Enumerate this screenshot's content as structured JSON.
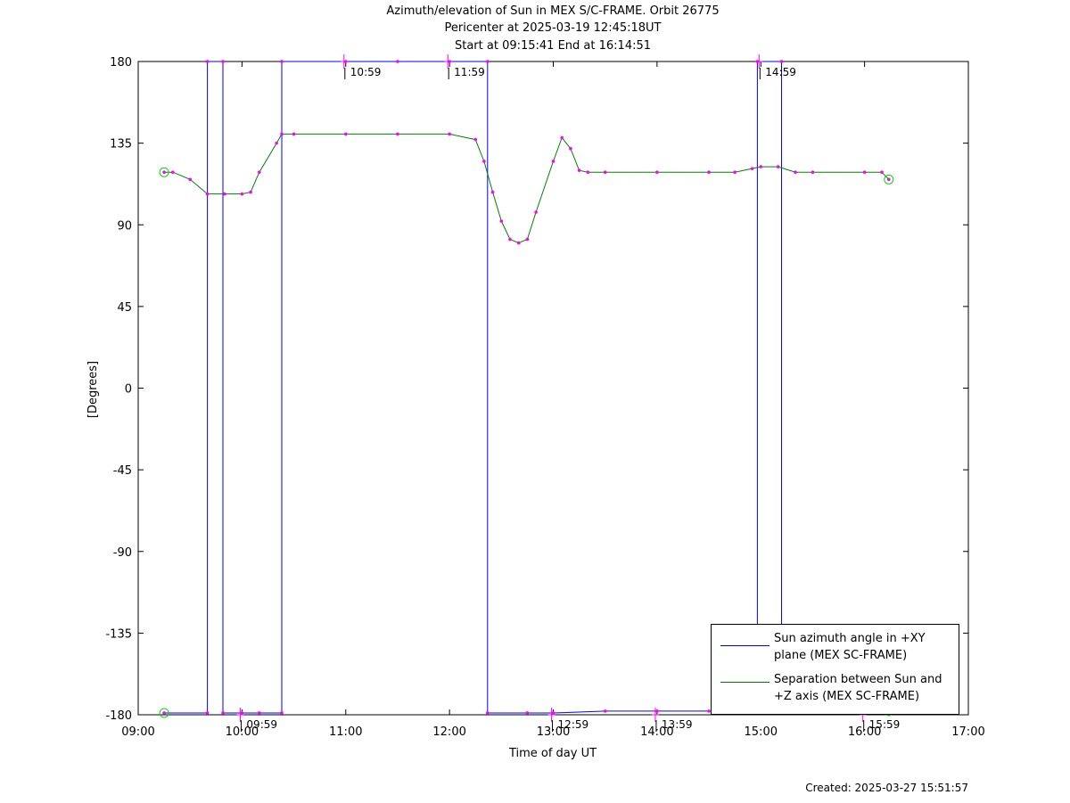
{
  "chart_data": {
    "type": "line",
    "title_lines": [
      "Azimuth/elevation of Sun in MEX S/C-FRAME.  Orbit 26775",
      "Pericenter at 2025-03-19 12:45:18UT",
      "Start at 09:15:41 End at 16:14:51"
    ],
    "xlabel": "Time of day UT",
    "ylabel": "[Degrees]",
    "xlim": [
      "09:00",
      "17:00"
    ],
    "ylim": [
      -180,
      180
    ],
    "x_ticks": [
      "09:00",
      "10:00",
      "11:00",
      "12:00",
      "13:00",
      "14:00",
      "15:00",
      "16:00",
      "17:00"
    ],
    "y_ticks": [
      "180",
      "135",
      "90",
      "45",
      "0",
      "-45",
      "-90",
      "-135",
      "-180"
    ],
    "colors": {
      "azimuth": "#0000ff",
      "separation": "#008000",
      "markers": "#ff00ff",
      "endpoints": "#00dd00"
    },
    "series": [
      {
        "name": "Sun azimuth angle in +XY plane (MEX SC-FRAME)",
        "legend_lines": [
          "Sun azimuth angle in +XY",
          "plane (MEX SC-FRAME)"
        ],
        "color": "#0000ff",
        "x": [
          "09:15",
          "09:40",
          "09:40",
          "09:49",
          "09:49",
          "10:00",
          "10:10",
          "10:23",
          "10:23",
          "11:00",
          "11:30",
          "12:00",
          "12:22",
          "12:22",
          "12:45",
          "13:00",
          "13:30",
          "14:00",
          "14:30",
          "14:58",
          "14:58",
          "15:12",
          "15:12",
          "15:40",
          "16:14"
        ],
        "y": [
          -179,
          -179,
          180,
          180,
          -179,
          -179,
          -179,
          -179,
          180,
          180,
          180,
          180,
          180,
          -179,
          -179,
          -179,
          -178,
          -178,
          -178,
          -178,
          180,
          180,
          -178,
          -178,
          -178
        ]
      },
      {
        "name": "Separation between Sun and +Z axis (MEX SC-FRAME)",
        "legend_lines": [
          "Separation between Sun and",
          "+Z axis (MEX SC-FRAME)"
        ],
        "color": "#008000",
        "x": [
          "09:15",
          "09:20",
          "09:30",
          "09:40",
          "09:50",
          "10:00",
          "10:05",
          "10:10",
          "10:20",
          "10:23",
          "10:30",
          "11:00",
          "11:30",
          "12:00",
          "12:15",
          "12:20",
          "12:25",
          "12:30",
          "12:35",
          "12:40",
          "12:45",
          "12:50",
          "13:00",
          "13:05",
          "13:10",
          "13:15",
          "13:20",
          "13:30",
          "14:00",
          "14:30",
          "14:45",
          "14:55",
          "15:00",
          "15:10",
          "15:20",
          "15:30",
          "16:00",
          "16:10",
          "16:14"
        ],
        "y": [
          119,
          119,
          115,
          107,
          107,
          107,
          108,
          119,
          135,
          140,
          140,
          140,
          140,
          140,
          137,
          125,
          108,
          92,
          82,
          80,
          82,
          97,
          125,
          138,
          132,
          120,
          119,
          119,
          119,
          119,
          119,
          121,
          122,
          122,
          119,
          119,
          119,
          119,
          115
        ]
      }
    ],
    "annotations": [
      {
        "time": "09:59",
        "label": "09:59",
        "y": -180
      },
      {
        "time": "10:59",
        "label": "10:59",
        "y": 180
      },
      {
        "time": "11:59",
        "label": "11:59",
        "y": 180
      },
      {
        "time": "12:59",
        "label": "12:59",
        "y": -180
      },
      {
        "time": "13:59",
        "label": "13:59",
        "y": -180
      },
      {
        "time": "14:59",
        "label": "14:59",
        "y": 180
      },
      {
        "time": "15:59",
        "label": "15:59",
        "y": -180
      }
    ],
    "legend_position": "bottom-right",
    "grid": false
  },
  "footer": {
    "created": "Created: 2025-03-27 15:51:57"
  }
}
